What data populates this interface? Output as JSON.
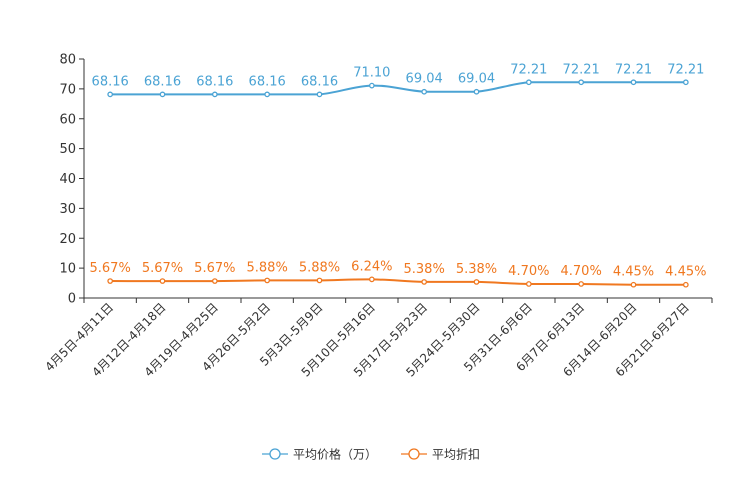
{
  "chart_data": {
    "type": "line",
    "categories": [
      "4月5日-4月11日",
      "4月12日-4月18日",
      "4月19日-4月25日",
      "4月26日-5月2日",
      "5月3日-5月9日",
      "5月10日-5月16日",
      "5月17日-5月23日",
      "5月24日-5月30日",
      "5月31日-6月6日",
      "6月7日-6月13日",
      "6月14日-6月20日",
      "6月21日-6月27日"
    ],
    "series": [
      {
        "name": "平均价格（万）",
        "color": "#4ba3d4",
        "values": [
          68.16,
          68.16,
          68.16,
          68.16,
          68.16,
          71.1,
          69.04,
          69.04,
          72.21,
          72.21,
          72.21,
          72.21
        ],
        "labels": [
          "68.16",
          "68.16",
          "68.16",
          "68.16",
          "68.16",
          "71.10",
          "69.04",
          "69.04",
          "72.21",
          "72.21",
          "72.21",
          "72.21"
        ]
      },
      {
        "name": "平均折扣",
        "color": "#f07820",
        "values": [
          5.67,
          5.67,
          5.67,
          5.88,
          5.88,
          6.24,
          5.38,
          5.38,
          4.7,
          4.7,
          4.45,
          4.45
        ],
        "labels": [
          "5.67%",
          "5.67%",
          "5.67%",
          "5.88%",
          "5.88%",
          "6.24%",
          "5.38%",
          "5.38%",
          "4.70%",
          "4.70%",
          "4.45%",
          "4.45%"
        ]
      }
    ],
    "ylim": [
      0,
      80
    ],
    "yticks": [
      0,
      10,
      20,
      30,
      40,
      50,
      60,
      70,
      80
    ],
    "legend": "bottom-center"
  }
}
